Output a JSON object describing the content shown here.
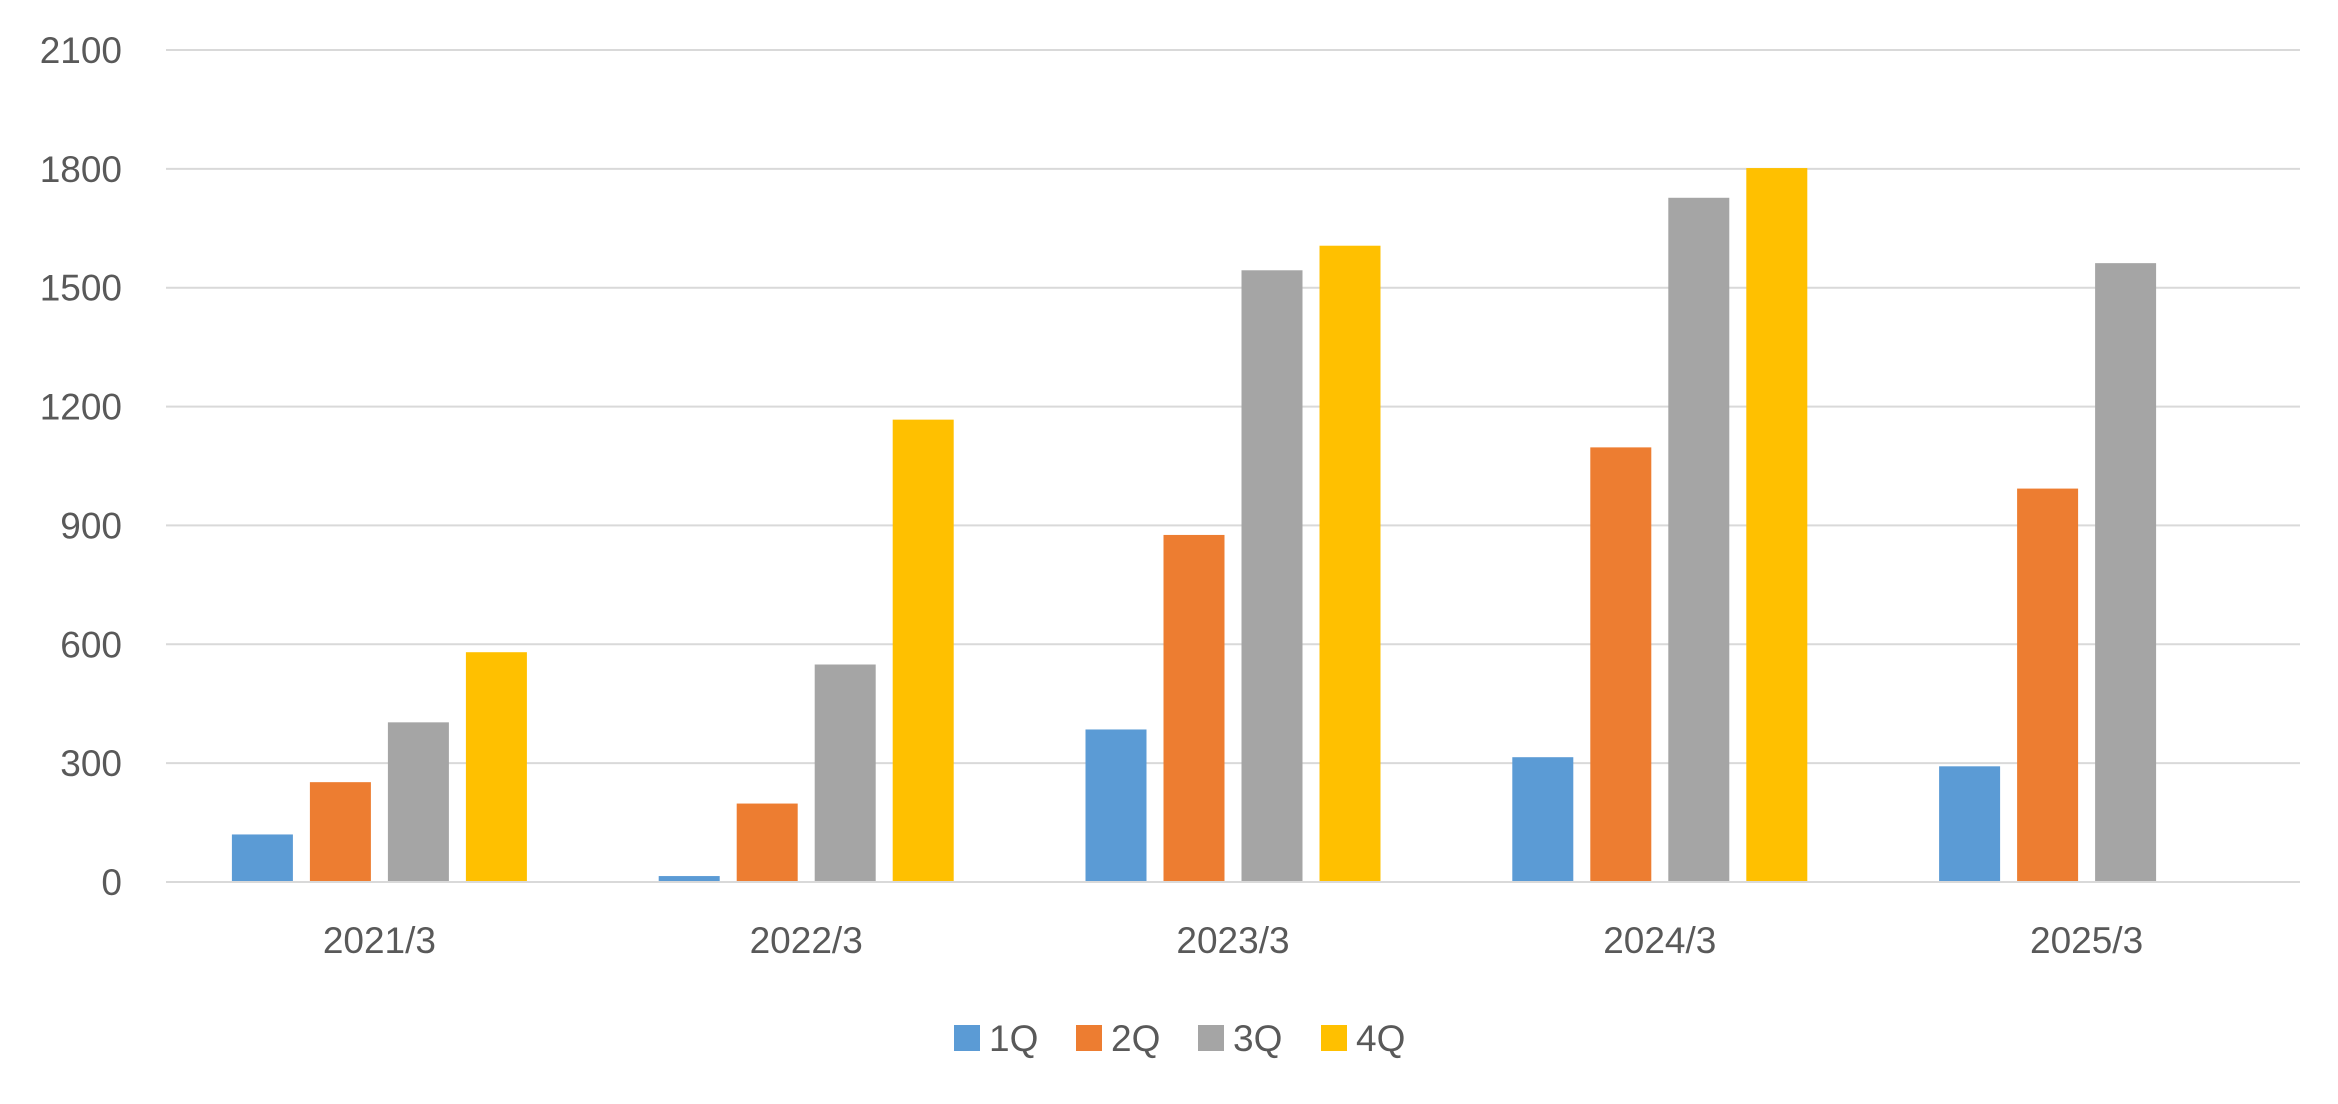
{
  "chart_data": {
    "type": "bar",
    "categories": [
      "2021/3",
      "2022/3",
      "2023/3",
      "2024/3",
      "2025/3"
    ],
    "series": [
      {
        "name": "1Q",
        "color": "#5b9bd5",
        "values": [
          120,
          15,
          385,
          315,
          292
        ]
      },
      {
        "name": "2Q",
        "color": "#ed7d31",
        "values": [
          252,
          198,
          876,
          1097,
          993
        ]
      },
      {
        "name": "3Q",
        "color": "#a5a5a5",
        "values": [
          403,
          549,
          1544,
          1727,
          1562
        ]
      },
      {
        "name": "4Q",
        "color": "#ffc000",
        "values": [
          580,
          1167,
          1606,
          1802,
          null
        ]
      }
    ],
    "y_ticks": [
      "0",
      "300",
      "600",
      "900",
      "1200",
      "1500",
      "1800",
      "2100"
    ],
    "ylim": [
      0,
      2100
    ],
    "grid": true,
    "legend_position": "bottom-center",
    "title": "",
    "xlabel": "",
    "ylabel": ""
  }
}
